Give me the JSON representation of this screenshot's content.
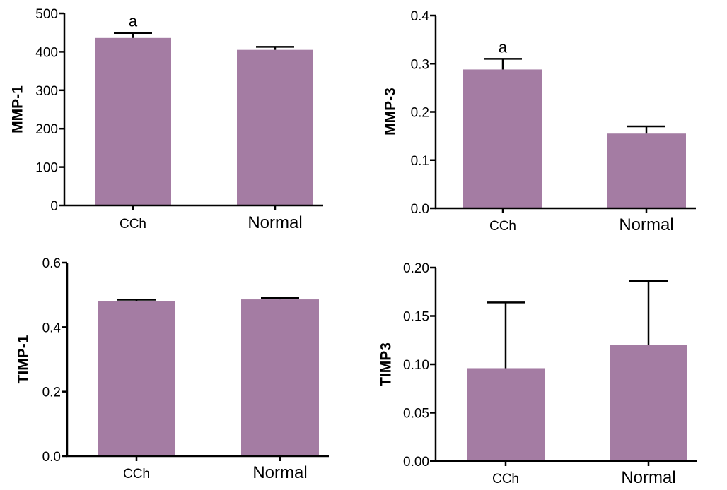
{
  "colors": {
    "bar": "#a47ca3",
    "axis": "#000000"
  },
  "chart_data": [
    {
      "type": "bar",
      "ylabel": "MMP-1",
      "categories": [
        "CCh",
        "Normal"
      ],
      "values": [
        436,
        405
      ],
      "errors": [
        13,
        8
      ],
      "annotations": [
        "a",
        ""
      ],
      "ylim": [
        0,
        500
      ],
      "yticks": [
        0,
        100,
        200,
        300,
        400,
        500
      ],
      "ytick_labels": [
        "0",
        "100",
        "200",
        "300",
        "400",
        "500"
      ],
      "grid": false
    },
    {
      "type": "bar",
      "ylabel": "MMP-3",
      "categories": [
        "CCh",
        "Normal"
      ],
      "values": [
        0.288,
        0.155
      ],
      "errors": [
        0.022,
        0.015
      ],
      "annotations": [
        "a",
        ""
      ],
      "ylim": [
        0,
        0.4
      ],
      "yticks": [
        0,
        0.1,
        0.2,
        0.3,
        0.4
      ],
      "ytick_labels": [
        "0.0",
        "0.1",
        "0.2",
        "0.3",
        "0.4"
      ],
      "grid": false
    },
    {
      "type": "bar",
      "ylabel": "TIMP-1",
      "categories": [
        "CCh",
        "Normal"
      ],
      "values": [
        0.48,
        0.486
      ],
      "errors": [
        0.005,
        0.005
      ],
      "annotations": [
        "",
        ""
      ],
      "ylim": [
        0,
        0.6
      ],
      "yticks": [
        0,
        0.2,
        0.4,
        0.6
      ],
      "ytick_labels": [
        "0.0",
        "0.2",
        "0.4",
        "0.6"
      ],
      "grid": false
    },
    {
      "type": "bar",
      "ylabel": "TIMP3",
      "categories": [
        "CCh",
        "Normal"
      ],
      "values": [
        0.096,
        0.12
      ],
      "errors": [
        0.068,
        0.066
      ],
      "annotations": [
        "",
        ""
      ],
      "ylim": [
        0,
        0.2
      ],
      "yticks": [
        0,
        0.05,
        0.1,
        0.15,
        0.2
      ],
      "ytick_labels": [
        "0.00",
        "0.05",
        "0.10",
        "0.15",
        "0.20"
      ],
      "grid": false
    }
  ]
}
